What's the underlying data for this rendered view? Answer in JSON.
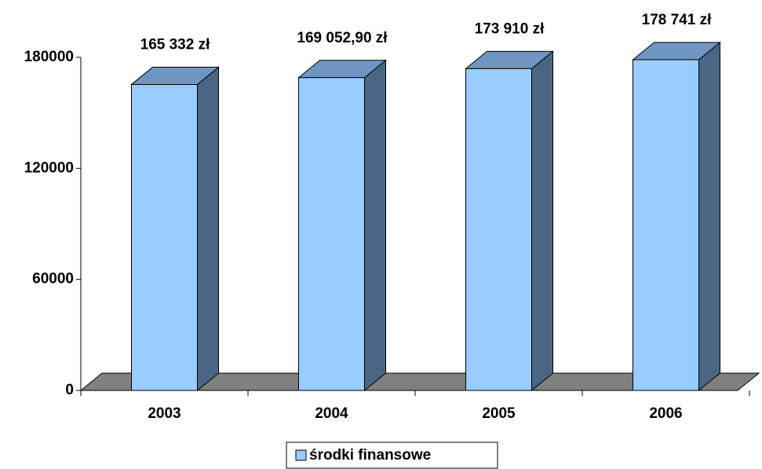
{
  "chart_data": {
    "type": "bar3d",
    "categories": [
      "2003",
      "2004",
      "2005",
      "2006"
    ],
    "series": [
      {
        "name": "środki finansowe",
        "color": "#99ccff",
        "values": [
          165332,
          169052.9,
          173910,
          178741
        ],
        "value_labels": [
          "165 332 zł",
          "169 052,90 zł",
          "173 910 zł",
          "178 741 zł"
        ]
      }
    ],
    "ylim": [
      0,
      180000
    ],
    "yticks": [
      0,
      60000,
      120000,
      180000
    ],
    "legend": "bottom"
  }
}
